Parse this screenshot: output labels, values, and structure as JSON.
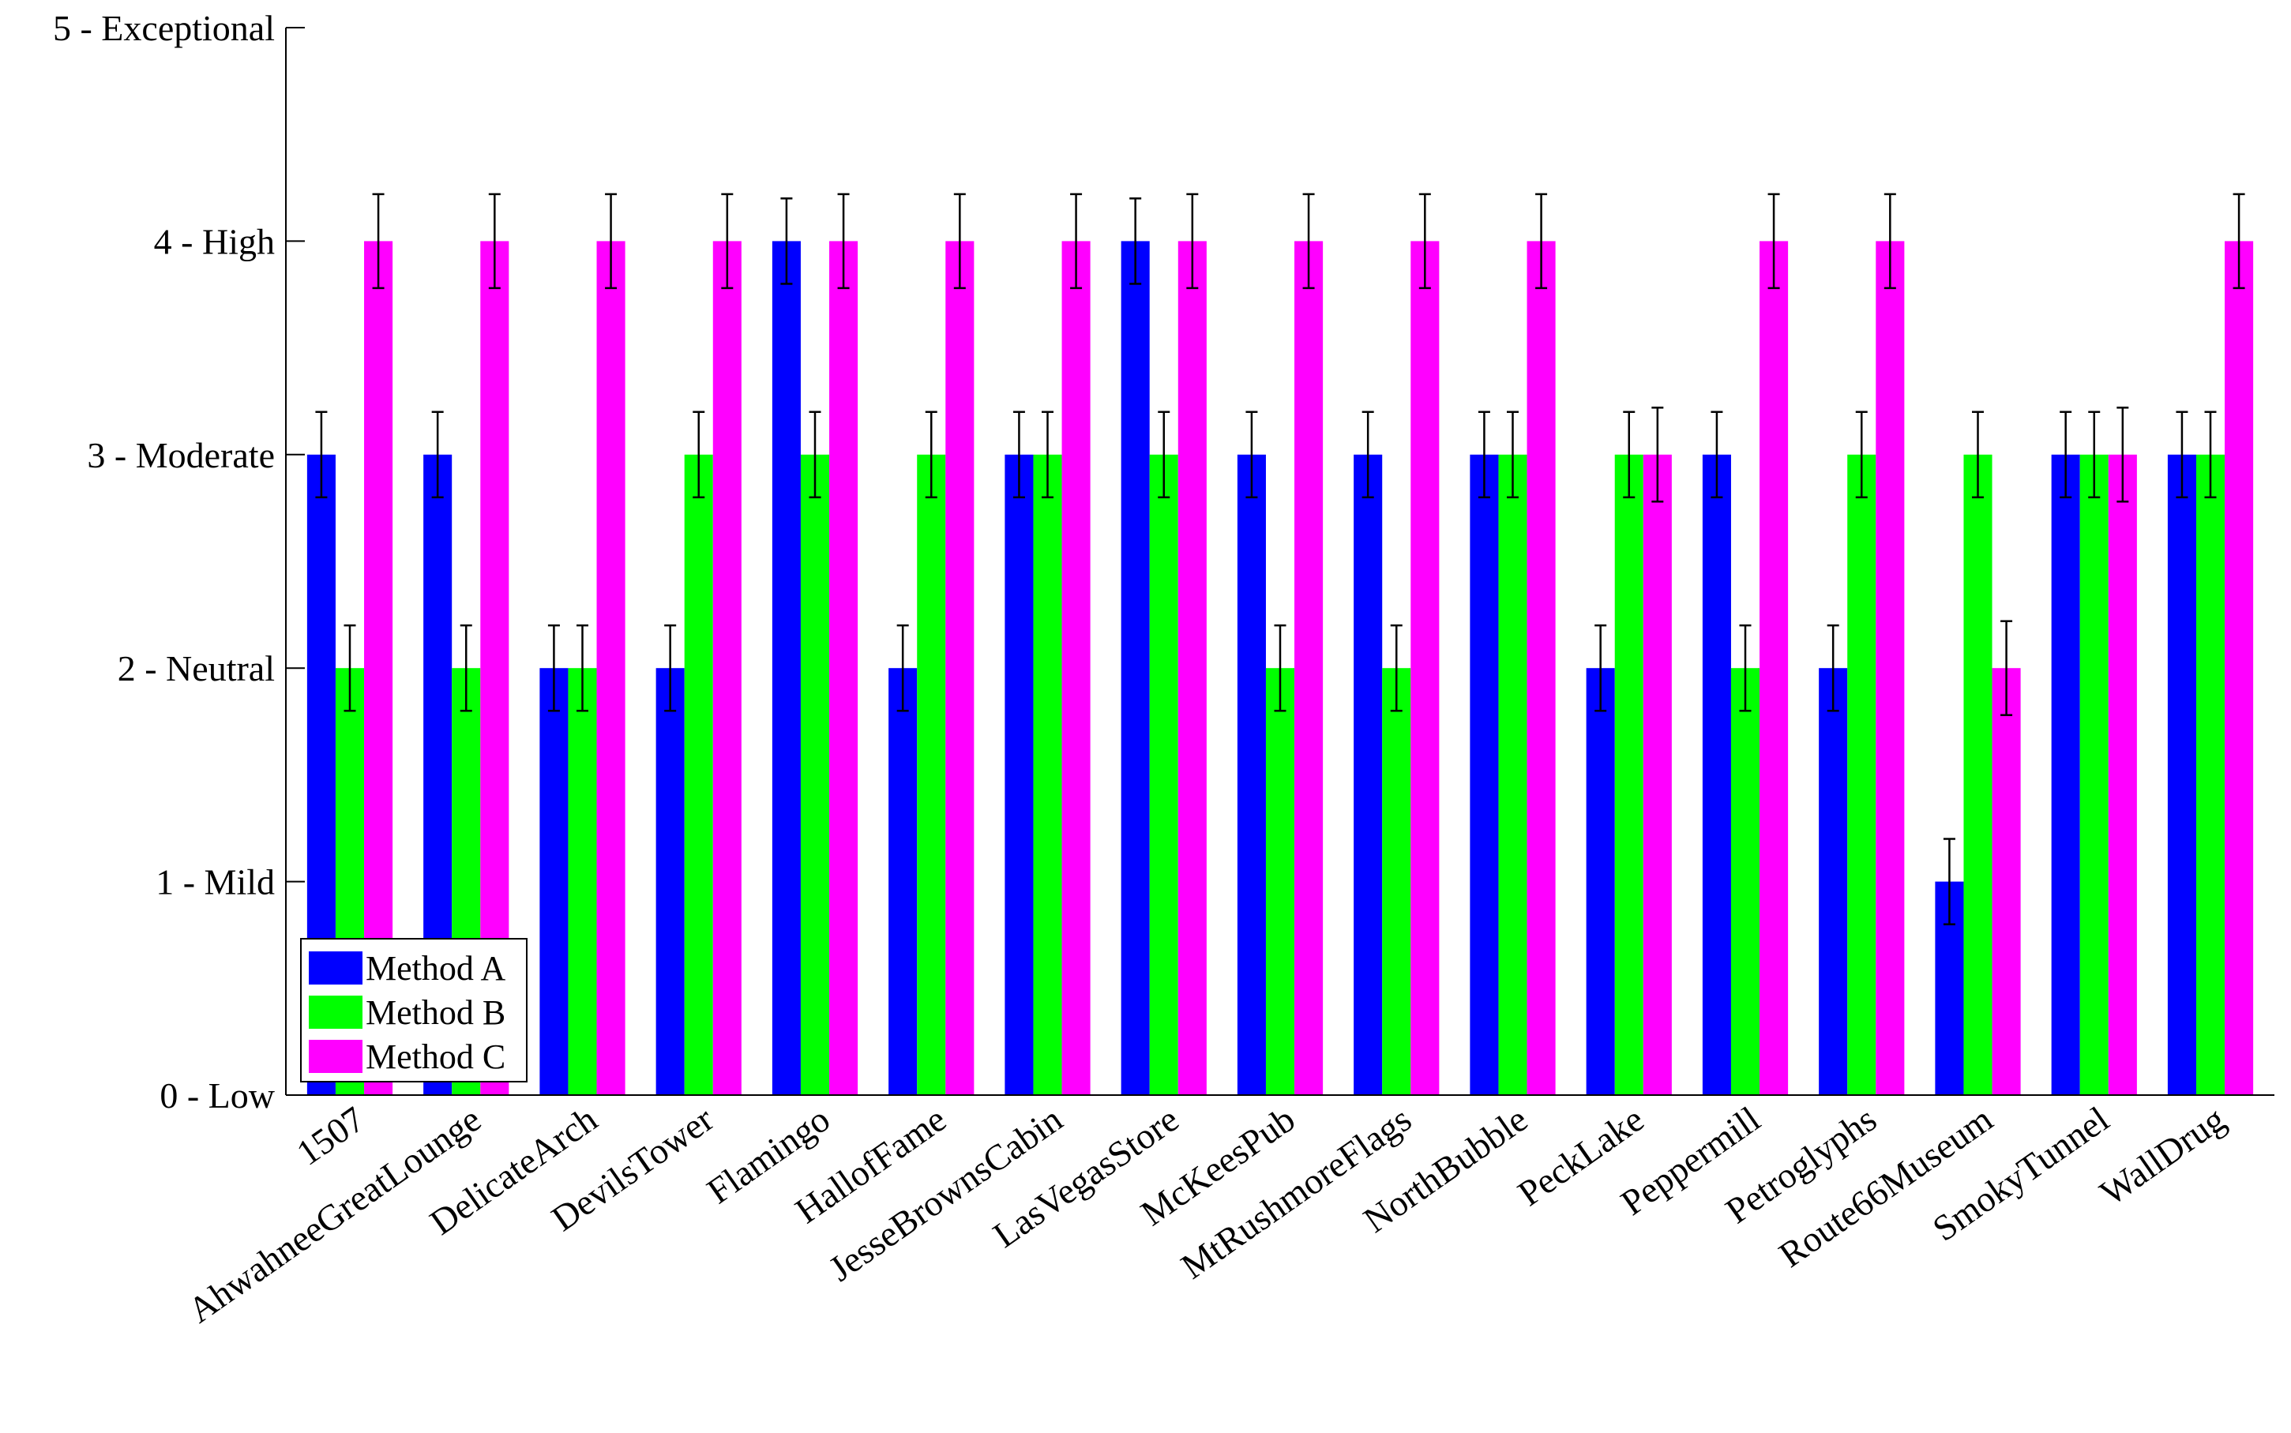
{
  "chart_data": {
    "type": "bar",
    "title": "",
    "xlabel": "",
    "ylabel": "",
    "ylim": [
      0,
      5
    ],
    "yticks": [
      0,
      1,
      2,
      3,
      4,
      5
    ],
    "ytick_labels": [
      "0 - Low",
      "1 - Mild",
      "2 - Neutral",
      "3 - Moderate",
      "4 - High",
      "5 - Exceptional"
    ],
    "categories": [
      "1507",
      "AhwahneeGreatLounge",
      "DelicateArch",
      "DevilsTower",
      "Flamingo",
      "HallofFame",
      "JesseBrownsCabin",
      "LasVegasStore",
      "McKeesPub",
      "MtRushmoreFlags",
      "NorthBubble",
      "PeckLake",
      "Peppermill",
      "Petroglyphs",
      "Route66Museum",
      "SmokyTunnel",
      "WallDrug"
    ],
    "series": [
      {
        "name": "Method A",
        "color": "#0000ff",
        "values": [
          3,
          3,
          2,
          2,
          4,
          2,
          3,
          4,
          3,
          3,
          3,
          2,
          3,
          2,
          1,
          3,
          3
        ],
        "errors": [
          0.2,
          0.2,
          0.2,
          0.2,
          0.2,
          0.2,
          0.2,
          0.2,
          0.2,
          0.2,
          0.2,
          0.2,
          0.2,
          0.2,
          0.2,
          0.2,
          0.2
        ]
      },
      {
        "name": "Method B",
        "color": "#00ff00",
        "values": [
          2,
          2,
          2,
          3,
          3,
          3,
          3,
          3,
          2,
          2,
          3,
          3,
          2,
          3,
          3,
          3,
          3
        ],
        "errors": [
          0.2,
          0.2,
          0.2,
          0.2,
          0.2,
          0.2,
          0.2,
          0.2,
          0.2,
          0.2,
          0.2,
          0.2,
          0.2,
          0.2,
          0.2,
          0.2,
          0.2
        ]
      },
      {
        "name": "Method C",
        "color": "#ff00ff",
        "values": [
          4,
          4,
          4,
          4,
          4,
          4,
          4,
          4,
          4,
          4,
          4,
          3,
          4,
          4,
          2,
          3,
          4
        ],
        "errors": [
          0.22,
          0.22,
          0.22,
          0.22,
          0.22,
          0.22,
          0.22,
          0.22,
          0.22,
          0.22,
          0.22,
          0.22,
          0.22,
          0.22,
          0.22,
          0.22,
          0.22
        ]
      }
    ],
    "legend": {
      "position": "bottom-left",
      "entries": [
        "Method A",
        "Method B",
        "Method C"
      ]
    },
    "grid": false,
    "error_bar_color": "#000000",
    "axis_color": "#000000"
  }
}
